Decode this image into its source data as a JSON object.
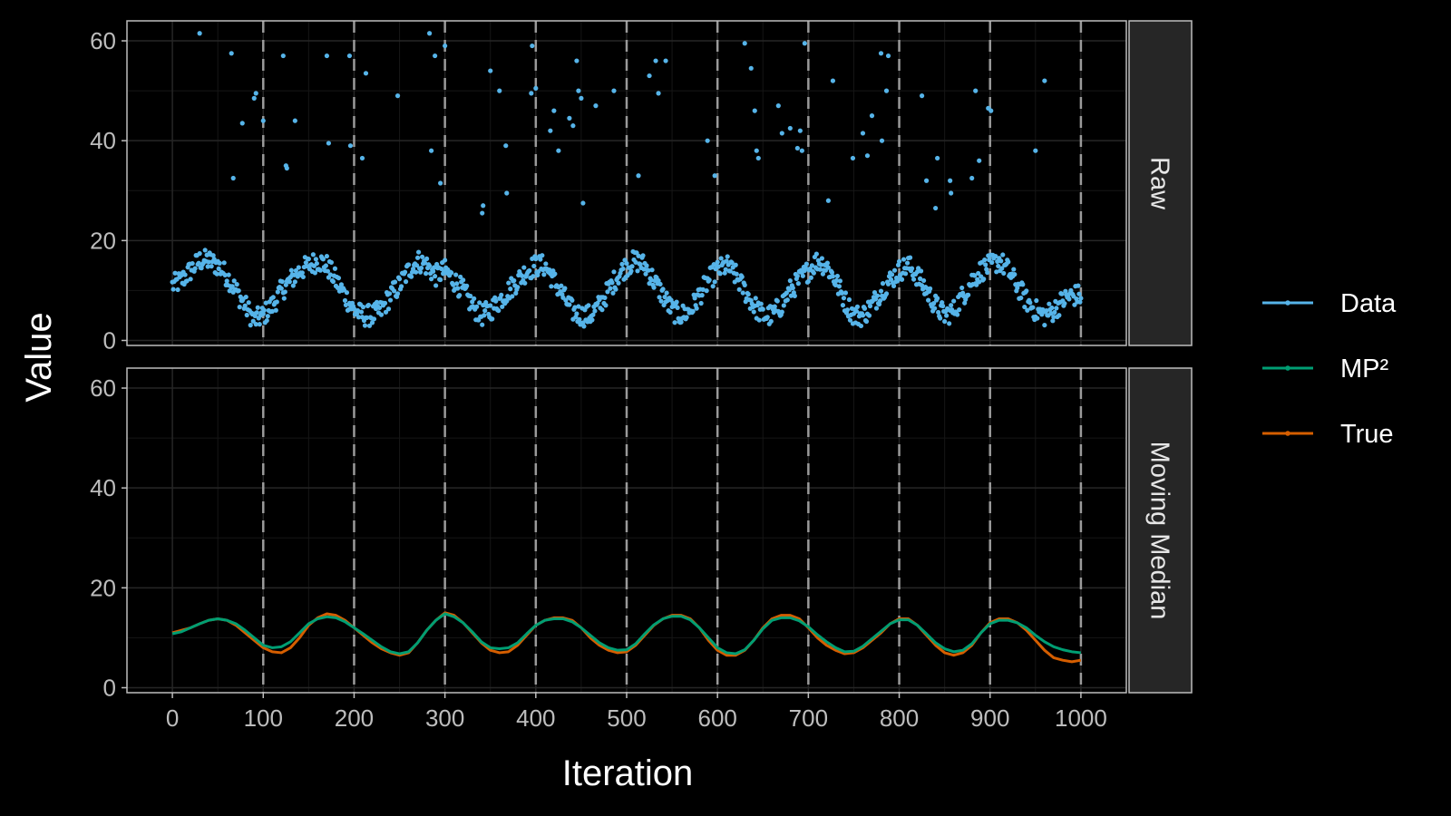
{
  "chart_data": {
    "type": "scatter",
    "xlabel": "Iteration",
    "ylabel": "Value",
    "xlim": [
      -50,
      1050
    ],
    "ylim": [
      -1,
      64
    ],
    "xticks": [
      0,
      100,
      200,
      300,
      400,
      500,
      600,
      700,
      800,
      900,
      1000
    ],
    "xtick_labels": [
      "0",
      "100",
      "200",
      "300",
      "400",
      "500",
      "600",
      "700",
      "800",
      "900",
      "1000"
    ],
    "yticks": [
      0,
      20,
      40,
      60
    ],
    "ytick_labels": [
      "0",
      "20",
      "40",
      "60"
    ],
    "vlines": [
      100,
      200,
      300,
      400,
      500,
      600,
      700,
      800,
      900,
      1000
    ],
    "grid": true,
    "legend_placement": "right",
    "legend": [
      {
        "label": "Data",
        "color": "#56B4E9"
      },
      {
        "label": "MP²",
        "color": "#009E73"
      },
      {
        "label": "True",
        "color": "#D55E00"
      }
    ],
    "panels": [
      {
        "strip": "Raw",
        "series": [
          {
            "name": "Data",
            "type": "scatter",
            "color": "#56B4E9",
            "baseline_x": [
              0,
              10,
              20,
              30,
              40,
              50,
              60,
              70,
              80,
              90,
              100,
              110,
              120,
              130,
              140,
              150,
              160,
              170,
              180,
              190,
              200,
              210,
              220,
              230,
              240,
              250,
              260,
              270,
              280,
              290,
              300,
              310,
              320,
              330,
              340,
              350,
              360,
              370,
              380,
              390,
              400,
              410,
              420,
              430,
              440,
              450,
              460,
              470,
              480,
              490,
              500,
              510,
              520,
              530,
              540,
              550,
              560,
              570,
              580,
              590,
              600,
              610,
              620,
              630,
              640,
              650,
              660,
              670,
              680,
              690,
              700,
              710,
              720,
              730,
              740,
              750,
              760,
              770,
              780,
              790,
              800,
              810,
              820,
              830,
              840,
              850,
              860,
              870,
              880,
              890,
              900,
              910,
              920,
              930,
              940,
              950,
              960,
              970,
              980,
              990,
              1000
            ],
            "baseline_y": [
              11,
              12,
              14,
              16,
              16,
              15,
              13,
              10,
              7,
              4,
              5,
              7,
              10,
              12,
              14,
              15,
              16,
              15,
              12,
              9,
              6,
              5,
              5,
              6,
              9,
              11,
              14,
              16,
              15,
              13,
              14,
              12,
              10,
              7,
              5,
              6,
              8,
              10,
              12,
              14,
              15,
              15,
              12,
              9,
              6,
              5,
              5,
              7,
              10,
              13,
              15,
              16,
              15,
              12,
              9,
              6,
              5,
              6,
              9,
              12,
              14,
              15,
              13,
              10,
              7,
              5,
              5,
              7,
              10,
              12,
              14,
              16,
              15,
              12,
              8,
              5,
              5,
              7,
              10,
              12,
              14,
              15,
              13,
              10,
              7,
              5,
              6,
              9,
              12,
              14,
              15,
              16,
              14,
              11,
              8,
              6,
              5,
              6,
              8,
              9,
              9
            ],
            "spread": 2.2,
            "outliers": [
              [
                30,
                61.5
              ],
              [
                65,
                57.5
              ],
              [
                67,
                32.5
              ],
              [
                77,
                43.5
              ],
              [
                90,
                48.5
              ],
              [
                92,
                49.5
              ],
              [
                100,
                44
              ],
              [
                122,
                57
              ],
              [
                125,
                35
              ],
              [
                126,
                34.5
              ],
              [
                135,
                44
              ],
              [
                170,
                57
              ],
              [
                172,
                39.5
              ],
              [
                195,
                57
              ],
              [
                196,
                39
              ],
              [
                209,
                36.5
              ],
              [
                213,
                53.5
              ],
              [
                248,
                49
              ],
              [
                283,
                61.5
              ],
              [
                285,
                38
              ],
              [
                289,
                57
              ],
              [
                295,
                31.5
              ],
              [
                300,
                59
              ],
              [
                341,
                25.5
              ],
              [
                342,
                27
              ],
              [
                350,
                54
              ],
              [
                360,
                50
              ],
              [
                367,
                39
              ],
              [
                368,
                29.5
              ],
              [
                395,
                49.5
              ],
              [
                396,
                59
              ],
              [
                400,
                50.5
              ],
              [
                416,
                42
              ],
              [
                420,
                46
              ],
              [
                425,
                38
              ],
              [
                437,
                44.5
              ],
              [
                441,
                43
              ],
              [
                445,
                56
              ],
              [
                447,
                50
              ],
              [
                450,
                48.5
              ],
              [
                452,
                27.5
              ],
              [
                466,
                47
              ],
              [
                486,
                50
              ],
              [
                513,
                33
              ],
              [
                525,
                53
              ],
              [
                532,
                56
              ],
              [
                535,
                49.5
              ],
              [
                543,
                56
              ],
              [
                589,
                40
              ],
              [
                597,
                33
              ],
              [
                630,
                59.5
              ],
              [
                637,
                54.5
              ],
              [
                641,
                46
              ],
              [
                643,
                38
              ],
              [
                645,
                36.5
              ],
              [
                667,
                47
              ],
              [
                671,
                41.5
              ],
              [
                680,
                42.5
              ],
              [
                688,
                38.5
              ],
              [
                691,
                42
              ],
              [
                693,
                38
              ],
              [
                696,
                59.5
              ],
              [
                722,
                28
              ],
              [
                727,
                52
              ],
              [
                749,
                36.5
              ],
              [
                760,
                41.5
              ],
              [
                765,
                37
              ],
              [
                770,
                45
              ],
              [
                780,
                57.5
              ],
              [
                781,
                40
              ],
              [
                786,
                50
              ],
              [
                788,
                57
              ],
              [
                825,
                49
              ],
              [
                830,
                32
              ],
              [
                840,
                26.5
              ],
              [
                842,
                36.5
              ],
              [
                856,
                32
              ],
              [
                857,
                29.5
              ],
              [
                880,
                32.5
              ],
              [
                884,
                50
              ],
              [
                888,
                36
              ],
              [
                898,
                46.5
              ],
              [
                901,
                46
              ],
              [
                950,
                38
              ],
              [
                960,
                52
              ]
            ]
          }
        ]
      },
      {
        "strip": "Moving Median",
        "series": [
          {
            "name": "True",
            "type": "line",
            "color": "#D55E00",
            "x": [
              0,
              10,
              20,
              30,
              40,
              50,
              60,
              70,
              80,
              90,
              100,
              110,
              120,
              130,
              140,
              150,
              160,
              170,
              180,
              190,
              200,
              210,
              220,
              230,
              240,
              250,
              260,
              270,
              280,
              290,
              300,
              310,
              320,
              330,
              340,
              350,
              360,
              370,
              380,
              390,
              400,
              410,
              420,
              430,
              440,
              450,
              460,
              470,
              480,
              490,
              500,
              510,
              520,
              530,
              540,
              550,
              560,
              570,
              580,
              590,
              600,
              610,
              620,
              630,
              640,
              650,
              660,
              670,
              680,
              690,
              700,
              710,
              720,
              730,
              740,
              750,
              760,
              770,
              780,
              790,
              800,
              810,
              820,
              830,
              840,
              850,
              860,
              870,
              880,
              890,
              900,
              910,
              920,
              930,
              940,
              950,
              960,
              970,
              980,
              990,
              1000
            ],
            "y": [
              11,
              11.5,
              12,
              12.8,
              13.5,
              13.8,
              13.5,
              12.5,
              11,
              9.5,
              8,
              7.2,
              7,
              8,
              10,
              12.5,
              14,
              14.8,
              14.5,
              13.5,
              12,
              10.5,
              9,
              7.8,
              7,
              6.5,
              7,
              9,
              11.5,
              13.5,
              15,
              14.5,
              13,
              11,
              9,
              7.5,
              7,
              7.2,
              8.5,
              10.5,
              12.5,
              13.5,
              14,
              14,
              13.5,
              12,
              10,
              8.5,
              7.5,
              7,
              7.2,
              8.5,
              10.5,
              12.5,
              13.8,
              14.5,
              14.5,
              13.8,
              12,
              9.5,
              7.5,
              6.5,
              6.5,
              7.5,
              9.5,
              12,
              13.8,
              14.5,
              14.5,
              13.8,
              12,
              10,
              8.5,
              7.5,
              6.8,
              7,
              8,
              9.5,
              11,
              12.8,
              13.8,
              13.8,
              12.5,
              10.5,
              8.5,
              7,
              6.5,
              7,
              8.5,
              11,
              13,
              13.8,
              13.8,
              13,
              11.5,
              9.5,
              7.5,
              6,
              5.5,
              5.2,
              5.5
            ]
          },
          {
            "name": "MP²",
            "type": "line",
            "color": "#009E73",
            "x": [
              0,
              10,
              20,
              30,
              40,
              50,
              60,
              70,
              80,
              90,
              100,
              110,
              120,
              130,
              140,
              150,
              160,
              170,
              180,
              190,
              200,
              210,
              220,
              230,
              240,
              250,
              260,
              270,
              280,
              290,
              300,
              310,
              320,
              330,
              340,
              350,
              360,
              370,
              380,
              390,
              400,
              410,
              420,
              430,
              440,
              450,
              460,
              470,
              480,
              490,
              500,
              510,
              520,
              530,
              540,
              550,
              560,
              570,
              580,
              590,
              600,
              610,
              620,
              630,
              640,
              650,
              660,
              670,
              680,
              690,
              700,
              710,
              720,
              730,
              740,
              750,
              760,
              770,
              780,
              790,
              800,
              810,
              820,
              830,
              840,
              850,
              860,
              870,
              880,
              890,
              900,
              910,
              920,
              930,
              940,
              950,
              960,
              970,
              980,
              990,
              1000
            ],
            "y": [
              10.8,
              11.2,
              12,
              12.8,
              13.5,
              13.8,
              13.5,
              12.8,
              11.5,
              10,
              8.5,
              8,
              8.2,
              9.2,
              11,
              12.8,
              13.8,
              14.2,
              14,
              13.2,
              12,
              10.8,
              9.5,
              8.2,
              7.2,
              6.8,
              7.2,
              9,
              11.5,
              13.5,
              14.8,
              14.2,
              13,
              11.2,
              9.2,
              8,
              7.8,
              8,
              9,
              10.8,
              12.5,
              13.5,
              13.8,
              13.8,
              13.2,
              12,
              10.5,
              9,
              8,
              7.5,
              7.6,
              8.8,
              10.8,
              12.6,
              13.8,
              14.3,
              14.3,
              13.6,
              12,
              10,
              8,
              7,
              6.8,
              7.6,
              9.5,
              11.8,
              13.5,
              14,
              14,
              13.4,
              12.2,
              10.6,
              9.2,
              8,
              7.2,
              7.3,
              8.3,
              9.8,
              11.3,
              12.8,
              13.6,
              13.6,
              12.5,
              10.8,
              9,
              7.8,
              7.2,
              7.5,
              8.8,
              11,
              12.8,
              13.5,
              13.5,
              13,
              12,
              10.5,
              9.2,
              8.2,
              7.6,
              7.2,
              7
            ]
          }
        ]
      }
    ]
  }
}
